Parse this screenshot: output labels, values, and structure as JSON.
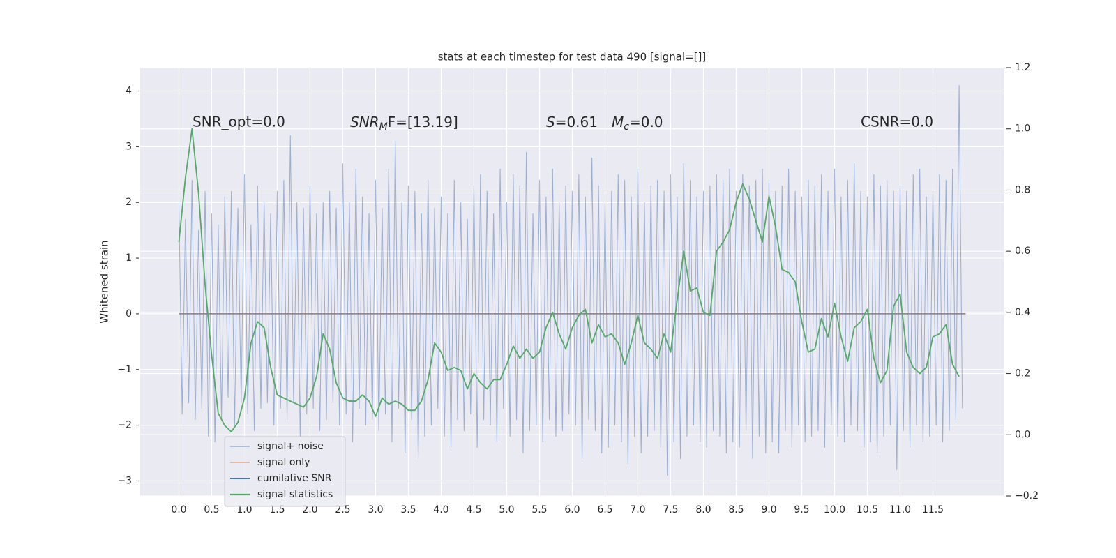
{
  "chart_data": {
    "type": "line",
    "title": "stats at each timestep for test data 490 [signal=[]]",
    "y_label": "Whitened strain",
    "xlim": [
      -0.59,
      12.58
    ],
    "ylim": [
      -3.27,
      4.42
    ],
    "y2lim": [
      -0.2,
      1.2
    ],
    "xticks": [
      {
        "value": 0,
        "label": "0.0"
      },
      0.5,
      {
        "value": 1,
        "label": "1.0"
      },
      1.5,
      {
        "value": 2,
        "label": "2.0"
      },
      2.5,
      {
        "value": 3,
        "label": "3.0"
      },
      3.5,
      {
        "value": 4,
        "label": "4.0"
      },
      4.5,
      {
        "value": 5,
        "label": "5.0"
      },
      5.5,
      {
        "value": 6,
        "label": "6.0"
      },
      6.5,
      {
        "value": 7,
        "label": "7.0"
      },
      7.5,
      {
        "value": 8,
        "label": "8.0"
      },
      8.5,
      {
        "value": 9,
        "label": "9.0"
      },
      9.5,
      {
        "value": 10,
        "label": "10.0"
      },
      10.5,
      {
        "value": 11,
        "label": "11.0"
      },
      11.5
    ],
    "yticks": [
      {
        "value": -3,
        "label": "−3"
      },
      {
        "value": -2,
        "label": "−2"
      },
      {
        "value": -1,
        "label": "−1"
      },
      0,
      1,
      2,
      3,
      4
    ],
    "y2ticks": [
      {
        "value": -0.2,
        "label": "−0.2"
      },
      {
        "value": 0,
        "label": "0.0"
      },
      0.2,
      0.4,
      0.6,
      0.8,
      {
        "value": 1,
        "label": "1.0"
      },
      1.2
    ],
    "grid": true,
    "legend": "lower left",
    "annotations": [
      {
        "text": "SNR_opt=0.0"
      },
      {
        "base": "SNR",
        "sub": "M",
        "rest": "F=[13.19]"
      },
      {
        "base": "S",
        "rest": "=0.61"
      },
      {
        "base": "M",
        "sub": "c",
        "rest": "=0.0"
      },
      {
        "text": "CSNR=0.0"
      }
    ],
    "series": [
      {
        "name": "signal+ noise",
        "color": "#4c72b0",
        "x": [
          0,
          0.05,
          0.1,
          0.15,
          0.2,
          0.25,
          0.3,
          0.35,
          0.4,
          0.45,
          0.5,
          0.55,
          0.6,
          0.65,
          0.7,
          0.75,
          0.8,
          0.85,
          0.9,
          0.95,
          1,
          1.05,
          1.1,
          1.15,
          1.2,
          1.25,
          1.3,
          1.35,
          1.4,
          1.45,
          1.5,
          1.55,
          1.6,
          1.65,
          1.7,
          1.75,
          1.8,
          1.85,
          1.9,
          1.95,
          2,
          2.05,
          2.1,
          2.15,
          2.2,
          2.25,
          2.3,
          2.35,
          2.4,
          2.45,
          2.5,
          2.55,
          2.6,
          2.65,
          2.7,
          2.75,
          2.8,
          2.85,
          2.9,
          2.95,
          3,
          3.05,
          3.1,
          3.15,
          3.2,
          3.25,
          3.3,
          3.35,
          3.4,
          3.45,
          3.5,
          3.55,
          3.6,
          3.65,
          3.7,
          3.75,
          3.8,
          3.85,
          3.9,
          3.95,
          4,
          4.05,
          4.1,
          4.15,
          4.2,
          4.25,
          4.3,
          4.35,
          4.4,
          4.45,
          4.5,
          4.55,
          4.6,
          4.65,
          4.7,
          4.75,
          4.8,
          4.85,
          4.9,
          4.95,
          5,
          5.05,
          5.1,
          5.15,
          5.2,
          5.25,
          5.3,
          5.35,
          5.4,
          5.45,
          5.5,
          5.55,
          5.6,
          5.65,
          5.7,
          5.75,
          5.8,
          5.85,
          5.9,
          5.95,
          6,
          6.05,
          6.1,
          6.15,
          6.2,
          6.25,
          6.3,
          6.35,
          6.4,
          6.45,
          6.5,
          6.55,
          6.6,
          6.65,
          6.7,
          6.75,
          6.8,
          6.85,
          6.9,
          6.95,
          7,
          7.05,
          7.1,
          7.15,
          7.2,
          7.25,
          7.3,
          7.35,
          7.4,
          7.45,
          7.5,
          7.55,
          7.6,
          7.65,
          7.7,
          7.75,
          7.8,
          7.85,
          7.9,
          7.95,
          8,
          8.05,
          8.1,
          8.15,
          8.2,
          8.25,
          8.3,
          8.35,
          8.4,
          8.45,
          8.5,
          8.55,
          8.6,
          8.65,
          8.7,
          8.75,
          8.8,
          8.85,
          8.9,
          8.95,
          9,
          9.05,
          9.1,
          9.15,
          9.2,
          9.25,
          9.3,
          9.35,
          9.4,
          9.45,
          9.5,
          9.55,
          9.6,
          9.65,
          9.7,
          9.75,
          9.8,
          9.85,
          9.9,
          9.95,
          10,
          10.05,
          10.1,
          10.15,
          10.2,
          10.25,
          10.3,
          10.35,
          10.4,
          10.45,
          10.5,
          10.55,
          10.6,
          10.65,
          10.7,
          10.75,
          10.8,
          10.85,
          10.9,
          10.95,
          11,
          11.05,
          11.1,
          11.15,
          11.2,
          11.25,
          11.3,
          11.35,
          11.4,
          11.45,
          11.5,
          11.55,
          11.6,
          11.65,
          11.7,
          11.75,
          11.8,
          11.85,
          11.9,
          11.95
        ],
        "values": [
          2.0,
          -1.8,
          1.7,
          -1.6,
          2.4,
          -1.9,
          1.5,
          -1.7,
          2.2,
          -2.2,
          1.8,
          -2.3,
          1.6,
          -1.9,
          2.1,
          -1.5,
          2.2,
          -2.0,
          1.9,
          -1.6,
          2.5,
          -1.8,
          1.6,
          -2.1,
          2.3,
          -1.7,
          2.0,
          -1.6,
          1.8,
          -2.0,
          2.2,
          -1.7,
          2.4,
          -1.9,
          3.2,
          -1.6,
          2.0,
          -2.2,
          1.9,
          -1.8,
          2.3,
          -1.7,
          1.8,
          -2.1,
          2.0,
          -1.9,
          2.2,
          -1.6,
          1.9,
          -2.0,
          2.7,
          -1.8,
          2.0,
          -2.3,
          2.6,
          -1.7,
          2.1,
          -2.0,
          1.8,
          -1.9,
          2.4,
          -2.1,
          1.9,
          -1.8,
          2.6,
          -2.3,
          3.1,
          -1.7,
          2.0,
          -2.5,
          2.3,
          -1.9,
          2.2,
          -2.6,
          1.8,
          -2.2,
          2.4,
          -2.0,
          1.9,
          -1.7,
          2.1,
          -2.2,
          1.8,
          -2.4,
          2.4,
          -1.9,
          2.0,
          -2.1,
          1.7,
          -1.8,
          2.3,
          -2.4,
          2.5,
          -1.9,
          2.2,
          -2.0,
          1.8,
          -2.3,
          2.6,
          -1.7,
          2.0,
          -2.2,
          2.5,
          -1.9,
          2.3,
          -2.5,
          2.9,
          -2.1,
          1.8,
          -2.0,
          2.4,
          -2.3,
          2.1,
          -1.9,
          2.6,
          -2.2,
          2.0,
          -2.1,
          2.3,
          -1.8,
          2.2,
          -2.0,
          2.5,
          -2.6,
          2.1,
          -1.9,
          2.8,
          -2.1,
          2.3,
          -2.5,
          2.0,
          -2.4,
          2.2,
          -2.0,
          2.5,
          -2.3,
          2.4,
          -2.7,
          2.1,
          -2.2,
          2.6,
          -2.5,
          2.0,
          -2.2,
          2.3,
          -2.1,
          2.4,
          -2.4,
          2.2,
          -2.9,
          2.5,
          -2.3,
          2.1,
          -2.6,
          2.7,
          -2.2,
          2.4,
          -2.0,
          2.1,
          -2.3,
          2.2,
          -2.4,
          2.3,
          -2.1,
          2.5,
          -2.2,
          2.4,
          -2.5,
          2.6,
          -2.3,
          2.2,
          -2.4,
          2.5,
          -2.1,
          2.3,
          -2.6,
          2.4,
          -2.2,
          2.6,
          -2.5,
          2.4,
          -2.3,
          2.2,
          -2.5,
          2.3,
          -2.1,
          2.6,
          -2.4,
          2.2,
          -2.0,
          2.1,
          -2.3,
          2.4,
          -2.2,
          2.3,
          -2.1,
          2.5,
          -2.4,
          2.2,
          -2.0,
          2.6,
          -2.2,
          2.1,
          -2.3,
          2.4,
          -2.0,
          2.7,
          -2.1,
          2.2,
          -2.4,
          2.1,
          -2.3,
          2.5,
          -2.5,
          2.3,
          -2.2,
          2.4,
          -2.0,
          2.2,
          -2.8,
          2.3,
          -2.1,
          2.2,
          -2.4,
          2.5,
          -2.0,
          2.6,
          -2.3,
          2.1,
          -2.2,
          2.2,
          -2.0,
          2.5,
          -2.3,
          2.4,
          -2.1,
          2.6,
          -1.9,
          4.1,
          -1.7
        ]
      },
      {
        "name": "signal only",
        "color": "#dd8452",
        "x": [
          0,
          12
        ],
        "values": [
          0,
          0
        ]
      },
      {
        "name": "cumilative SNR",
        "color": "#4c72b0",
        "x": [
          0,
          12
        ],
        "values": [
          0,
          0
        ]
      },
      {
        "name": "signal statistics",
        "color": "#55a868",
        "axis": "y2",
        "x": [
          0,
          0.1,
          0.2,
          0.3,
          0.4,
          0.5,
          0.6,
          0.7,
          0.8,
          0.9,
          1,
          1.1,
          1.2,
          1.3,
          1.4,
          1.5,
          1.6,
          1.7,
          1.8,
          1.9,
          2,
          2.1,
          2.2,
          2.3,
          2.4,
          2.5,
          2.6,
          2.7,
          2.8,
          2.9,
          3,
          3.1,
          3.2,
          3.3,
          3.4,
          3.5,
          3.6,
          3.7,
          3.8,
          3.9,
          4,
          4.1,
          4.2,
          4.3,
          4.4,
          4.5,
          4.6,
          4.7,
          4.8,
          4.9,
          5,
          5.1,
          5.2,
          5.3,
          5.4,
          5.5,
          5.6,
          5.7,
          5.8,
          5.9,
          6,
          6.1,
          6.2,
          6.3,
          6.4,
          6.5,
          6.6,
          6.7,
          6.8,
          6.9,
          7,
          7.1,
          7.2,
          7.3,
          7.4,
          7.5,
          7.6,
          7.7,
          7.8,
          7.9,
          8,
          8.1,
          8.2,
          8.3,
          8.4,
          8.5,
          8.6,
          8.7,
          8.8,
          8.9,
          9,
          9.1,
          9.2,
          9.3,
          9.4,
          9.5,
          9.6,
          9.7,
          9.8,
          9.9,
          10,
          10.1,
          10.2,
          10.3,
          10.4,
          10.5,
          10.6,
          10.7,
          10.8,
          10.9,
          11,
          11.1,
          11.2,
          11.3,
          11.4,
          11.5,
          11.6,
          11.7,
          11.8,
          11.9
        ],
        "values": [
          0.63,
          0.84,
          1.0,
          0.79,
          0.49,
          0.26,
          0.07,
          0.03,
          0.01,
          0.04,
          0.12,
          0.3,
          0.37,
          0.35,
          0.22,
          0.13,
          0.12,
          0.11,
          0.1,
          0.09,
          0.12,
          0.19,
          0.33,
          0.28,
          0.17,
          0.12,
          0.11,
          0.11,
          0.13,
          0.11,
          0.06,
          0.12,
          0.1,
          0.11,
          0.1,
          0.08,
          0.08,
          0.11,
          0.18,
          0.3,
          0.27,
          0.21,
          0.22,
          0.21,
          0.15,
          0.2,
          0.17,
          0.15,
          0.18,
          0.18,
          0.23,
          0.29,
          0.25,
          0.28,
          0.25,
          0.27,
          0.35,
          0.4,
          0.33,
          0.28,
          0.35,
          0.39,
          0.41,
          0.3,
          0.36,
          0.32,
          0.33,
          0.3,
          0.23,
          0.3,
          0.39,
          0.3,
          0.28,
          0.25,
          0.33,
          0.27,
          0.44,
          0.6,
          0.47,
          0.48,
          0.4,
          0.39,
          0.6,
          0.63,
          0.67,
          0.76,
          0.82,
          0.77,
          0.7,
          0.63,
          0.78,
          0.68,
          0.54,
          0.53,
          0.5,
          0.37,
          0.27,
          0.28,
          0.38,
          0.32,
          0.43,
          0.32,
          0.24,
          0.35,
          0.37,
          0.41,
          0.25,
          0.17,
          0.21,
          0.42,
          0.46,
          0.27,
          0.22,
          0.2,
          0.22,
          0.32,
          0.33,
          0.36,
          0.23,
          0.19
        ]
      }
    ]
  }
}
